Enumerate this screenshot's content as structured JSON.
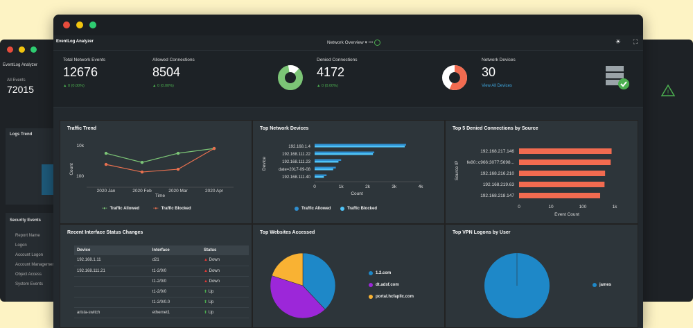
{
  "bg_left": {
    "app": "EventLog Analyzer",
    "all_events_label": "All Events",
    "all_events_value": "72015",
    "logs_trend": "Logs Trend",
    "security_events": "Security Events",
    "items": [
      "Report Name",
      "Logon",
      "Account Logon",
      "Account Management",
      "Object Access",
      "System Events"
    ]
  },
  "app": {
    "logo": "EventLog Analyzer",
    "view": "Network Overview"
  },
  "stats": [
    {
      "label": "Total Network Events",
      "value": "12676",
      "change": "0 (0.00%)"
    },
    {
      "label": "Allowed Connections",
      "value": "8504",
      "change": "0 (0.00%)"
    },
    {
      "label": "Denied Connections",
      "value": "4172",
      "change": "0 (0.00%)"
    },
    {
      "label": "Network Devices",
      "value": "30",
      "link": "View All Devices"
    }
  ],
  "panels": {
    "traffic_trend": "Traffic Trend",
    "top_devices": "Top Network Devices",
    "top_denied": "Top 5 Denied Connections by Source",
    "interface_changes": "Recent Interface Status Changes",
    "top_websites": "Top Websites Accessed",
    "top_vpn": "Top VPN Logons by User"
  },
  "chart_data": [
    {
      "type": "line",
      "title": "Traffic Trend",
      "categories": [
        "2020 Jan",
        "2020 Feb",
        "2020 Mar",
        "2020 Apr"
      ],
      "xlabel": "Time",
      "ylabel": "Count",
      "yscale": "log",
      "yticks": [
        "10k",
        "100"
      ],
      "series": [
        {
          "name": "Traffic Allowed",
          "color": "#7cc576",
          "values": [
            3000,
            800,
            3000,
            6000
          ]
        },
        {
          "name": "Traffic Blocked",
          "color": "#e8704f",
          "values": [
            600,
            200,
            300,
            6000
          ]
        }
      ]
    },
    {
      "type": "bar",
      "orientation": "horizontal",
      "title": "Top Network Devices",
      "categories": [
        "192.168.1.4",
        "192.168.111.22",
        "192.168.111.23",
        "date=2017-09-08",
        "192.168.111.40"
      ],
      "xlabel": "Count",
      "ylabel": "Device",
      "xticks": [
        "0",
        "1k",
        "2k",
        "3k",
        "4k"
      ],
      "xlim": [
        0,
        4000
      ],
      "series": [
        {
          "name": "Traffic Allowed",
          "color": "#2f8fd0",
          "values": [
            3450,
            2250,
            1000,
            800,
            450
          ]
        },
        {
          "name": "Traffic Blocked",
          "color": "#4fc3f7",
          "values": [
            3400,
            2200,
            900,
            700,
            350
          ]
        }
      ]
    },
    {
      "type": "bar",
      "orientation": "horizontal",
      "title": "Top 5 Denied Connections by Source",
      "categories": [
        "192.168.217.146",
        "fe80::c966:3077:5698...",
        "192.168.216.210",
        "192.168.219.63",
        "192.168.218.147"
      ],
      "xlabel": "Event Count",
      "ylabel": "Source IP",
      "xticks": [
        "0",
        "10",
        "100",
        "1k"
      ],
      "xscale": "log",
      "values": [
        800,
        750,
        500,
        480,
        350
      ],
      "color": "#f26b50"
    },
    {
      "type": "pie",
      "title": "Top Websites Accessed",
      "labels": [
        "1.2.com",
        "dt.adsf.com",
        "portal.hcfapllc.com"
      ],
      "values": [
        38,
        42,
        20
      ],
      "colors": [
        "#1e88c8",
        "#9c27d9",
        "#f9b233"
      ]
    },
    {
      "type": "pie",
      "title": "Top VPN Logons by User",
      "labels": [
        "james"
      ],
      "values": [
        100
      ],
      "colors": [
        "#1e88c8"
      ]
    }
  ],
  "interface_table": {
    "headers": [
      "Device",
      "Interface",
      "Status"
    ],
    "rows": [
      [
        "192.168.1.11",
        "d21",
        "Down"
      ],
      [
        "192.168.111.21",
        "t1-2/0/0",
        "Down"
      ],
      [
        "",
        "t1-2/0/0",
        "Down"
      ],
      [
        "",
        "t1-2/0/0",
        "Up"
      ],
      [
        "",
        "t1-2/0/0.0",
        "Up"
      ],
      [
        "arista-switch",
        "ethernet1",
        "Up"
      ]
    ]
  }
}
